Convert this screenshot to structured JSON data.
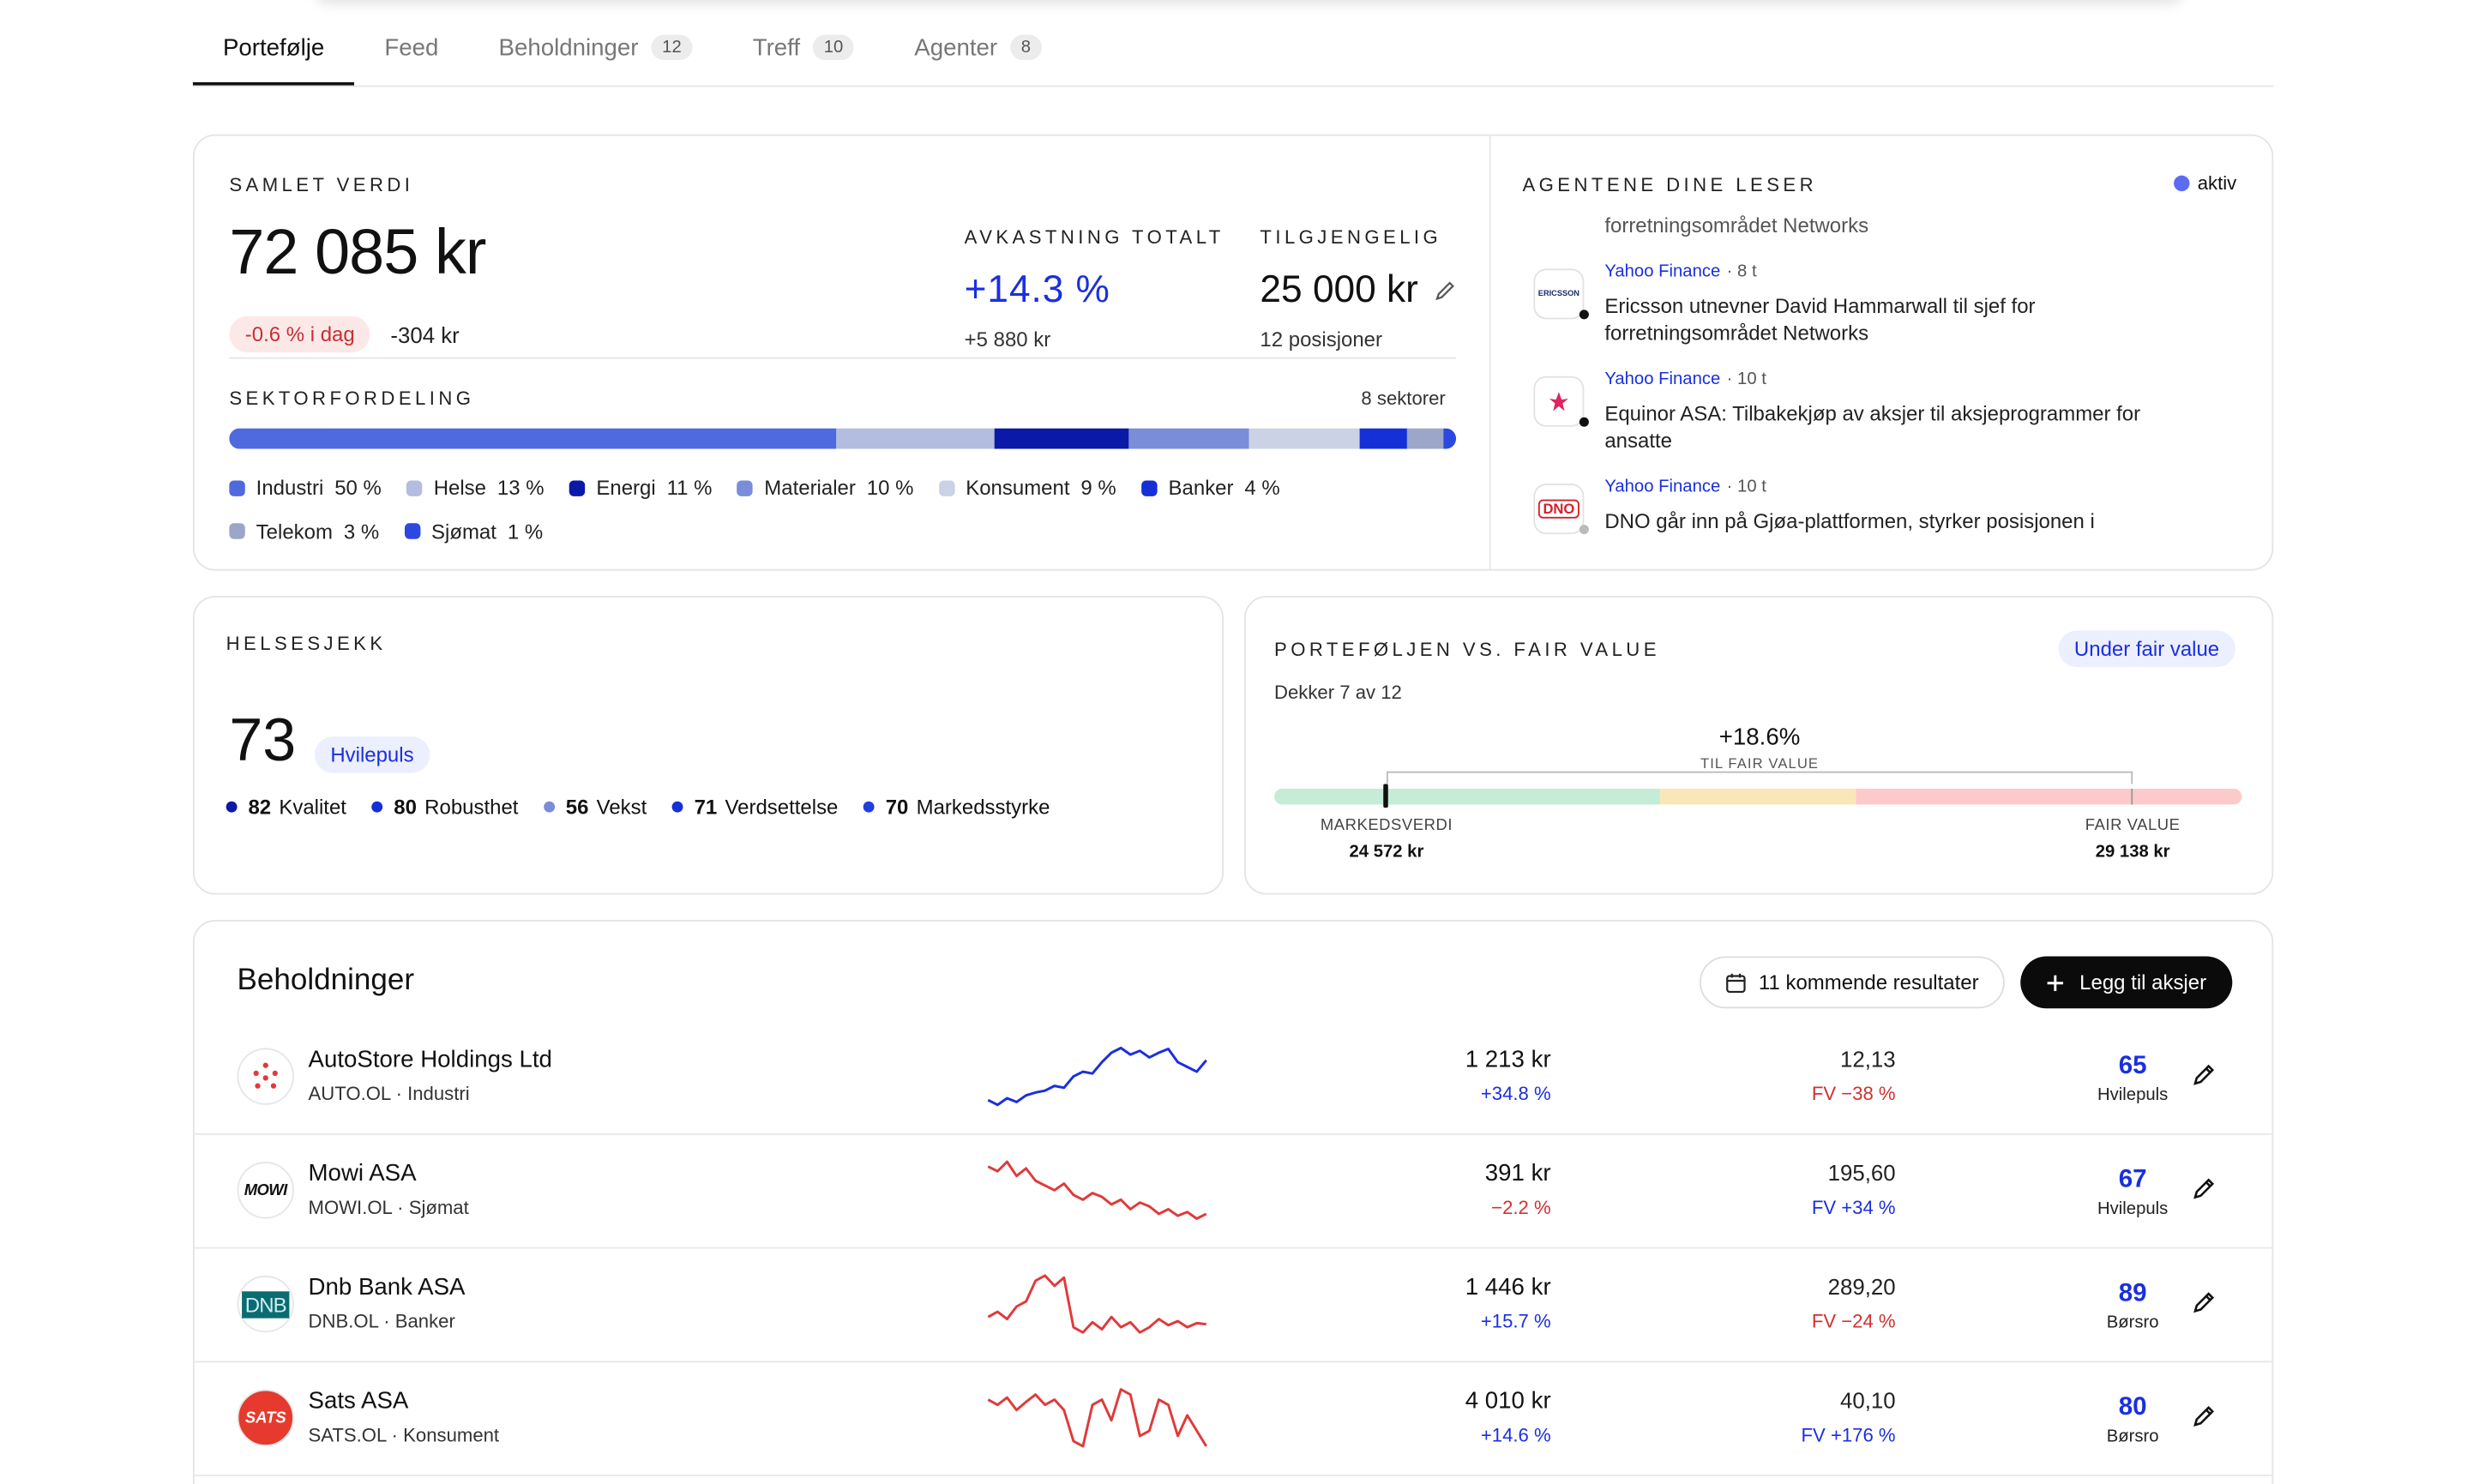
{
  "tabs": [
    {
      "label": "Portefølje",
      "active": true
    },
    {
      "label": "Feed"
    },
    {
      "label": "Beholdninger",
      "count": 12
    },
    {
      "label": "Treff",
      "count": 10
    },
    {
      "label": "Agenter",
      "count": 8
    }
  ],
  "overview": {
    "title": "SAMLET VERDI",
    "total": "72 085 kr",
    "today_pct": "-0.6 % i dag",
    "today_amount": "-304 kr",
    "return_title": "AVKASTNING TOTALT",
    "return_pct": "+14.3 %",
    "return_amount": "+5 880 kr",
    "available_title": "TILGJENGELIG",
    "available": "25 000 kr",
    "positions": "12 posisjoner",
    "sector_title": "SEKTORFORDELING",
    "sector_count": "8 sektorer",
    "sectors": [
      {
        "name": "Industri",
        "value": 50,
        "label": "50 %",
        "color": "#4f6ade"
      },
      {
        "name": "Helse",
        "value": 13,
        "label": "13 %",
        "color": "#b3bde0"
      },
      {
        "name": "Energi",
        "value": 11,
        "label": "11 %",
        "color": "#0a19a8"
      },
      {
        "name": "Materialer",
        "value": 10,
        "label": "10 %",
        "color": "#7a8dd8"
      },
      {
        "name": "Konsument",
        "value": 9,
        "label": "9 %",
        "color": "#cbd2e6"
      },
      {
        "name": "Banker",
        "value": 4,
        "label": "4 %",
        "color": "#1430d6"
      },
      {
        "name": "Telekom",
        "value": 3,
        "label": "3 %",
        "color": "#9ba6c8"
      },
      {
        "name": "Sjømat",
        "value": 1,
        "label": "1 %",
        "color": "#2b49e0"
      }
    ]
  },
  "agents": {
    "title": "AGENTENE DINE LESER",
    "status": "aktiv",
    "clipped_line": "forretningsområdet Networks",
    "news": [
      {
        "logo_text": "ERICSSON",
        "source": "Yahoo Finance",
        "time": "· 8 t",
        "title": "Ericsson utnevner David Hammarwall til sjef for forretningsområdet Networks",
        "unread": true
      },
      {
        "logo_text": "",
        "source": "Yahoo Finance",
        "time": "· 10 t",
        "title": "Equinor ASA: Tilbakekjøp av aksjer til aksjeprogrammer for ansatte",
        "unread": true
      },
      {
        "logo_text": "DNO",
        "source": "Yahoo Finance",
        "time": "· 10 t",
        "title": "DNO går inn på Gjøa-plattformen, styrker posisjonen i",
        "unread": false
      }
    ]
  },
  "health": {
    "title": "HELSESJEKK",
    "score": 73,
    "badge": "Hvilepuls",
    "metrics": [
      {
        "value": 82,
        "label": "Kvalitet",
        "color": "#0a19a8"
      },
      {
        "value": 80,
        "label": "Robusthet",
        "color": "#1430d6"
      },
      {
        "value": 56,
        "label": "Vekst",
        "color": "#7a8dd8"
      },
      {
        "value": 71,
        "label": "Verdsettelse",
        "color": "#1430d6"
      },
      {
        "value": 70,
        "label": "Markedsstyrke",
        "color": "#1f3ee0"
      }
    ]
  },
  "fair_value": {
    "title": "PORTEFØLJEN VS. FAIR VALUE",
    "badge": "Under fair value",
    "coverage": "Dekker 7 av 12",
    "upside": "+18.6%",
    "upside_label": "TIL FAIR VALUE",
    "market_label": "MARKEDSVERDI",
    "market_value": "24 572 kr",
    "fair_label": "FAIR VALUE",
    "fair_value": "29 138 kr"
  },
  "holdings": {
    "title": "Beholdninger",
    "upcoming": "11 kommende resultater",
    "add": "Legg til aksjer",
    "rows": [
      {
        "name": "AutoStore Holdings Ltd",
        "sub": "AUTO.OL · Industri",
        "logo_text": "",
        "price": "1 213 kr",
        "change": "+34.8 %",
        "fv": "12,13",
        "fv_change": "FV −38 %",
        "score": 65,
        "score_label": "Hvilepuls",
        "spark_color": "#1a2fe0",
        "spark": [
          20,
          15,
          22,
          18,
          25,
          28,
          30,
          35,
          33,
          45,
          50,
          48,
          60,
          70,
          75,
          68,
          72,
          65,
          70,
          74,
          60,
          55,
          50,
          62
        ]
      },
      {
        "name": "Mowi ASA",
        "sub": "MOWI.OL · Sjømat",
        "logo_text": "MOWI",
        "price": "391 kr",
        "change": "−2.2 %",
        "fv": "195,60",
        "fv_change": "FV +34 %",
        "score": 67,
        "score_label": "Hvilepuls",
        "spark_color": "#e03a3a",
        "spark": [
          80,
          75,
          85,
          70,
          78,
          65,
          60,
          55,
          62,
          50,
          45,
          52,
          48,
          40,
          45,
          35,
          42,
          38,
          30,
          35,
          28,
          32,
          25,
          30
        ]
      },
      {
        "name": "Dnb Bank ASA",
        "sub": "DNB.OL · Banker",
        "logo_text": "DNB",
        "price": "1 446 kr",
        "change": "+15.7 %",
        "fv": "289,20",
        "fv_change": "FV −24 %",
        "score": 89,
        "score_label": "Børsro",
        "spark_color": "#e03a3a",
        "spark": [
          40,
          45,
          38,
          50,
          55,
          75,
          80,
          70,
          78,
          30,
          25,
          35,
          28,
          40,
          30,
          35,
          25,
          30,
          38,
          32,
          36,
          30,
          34,
          33
        ]
      },
      {
        "name": "Sats ASA",
        "sub": "SATS.OL · Konsument",
        "logo_text": "SATS",
        "price": "4 010 kr",
        "change": "+14.6 %",
        "fv": "40,10",
        "fv_change": "FV +176 %",
        "score": 80,
        "score_label": "Børsro",
        "spark_color": "#e03a3a",
        "spark": [
          60,
          55,
          62,
          50,
          58,
          65,
          55,
          60,
          50,
          20,
          15,
          55,
          60,
          40,
          70,
          65,
          25,
          30,
          60,
          55,
          25,
          45,
          30,
          15
        ]
      }
    ]
  }
}
